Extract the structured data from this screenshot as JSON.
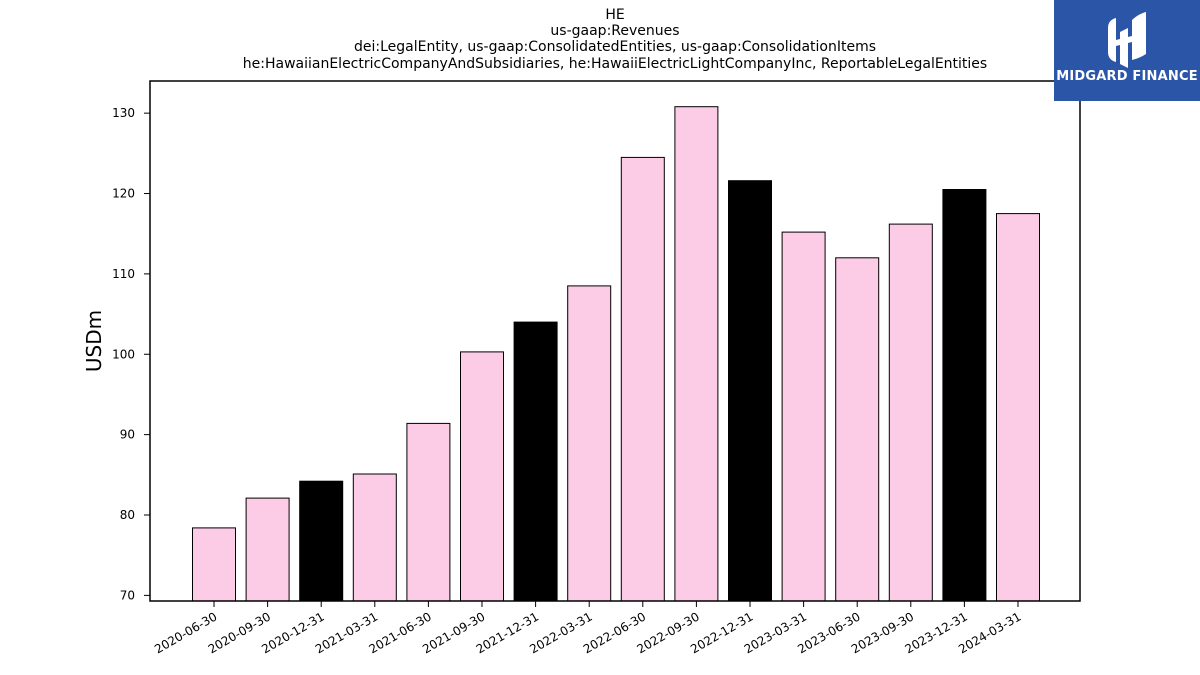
{
  "header": {
    "title_lines": [
      "HE",
      "us-gaap:Revenues",
      "dei:LegalEntity, us-gaap:ConsolidatedEntities, us-gaap:ConsolidationItems",
      "he:HawaiianElectricCompanyAndSubsidiaries, he:HawaiiElectricLightCompanyInc, ReportableLegalEntities"
    ]
  },
  "logo": {
    "text": "MIDGARD FINANCE",
    "color": "#2b56a8"
  },
  "chart_data": {
    "type": "bar",
    "title": "HE",
    "ylabel": "USDm",
    "xlabel": "",
    "ylim": [
      69.3,
      134
    ],
    "yticks": [
      70,
      80,
      90,
      100,
      110,
      120,
      130
    ],
    "grid": false,
    "categories": [
      "2020-06-30",
      "2020-09-30",
      "2020-12-31",
      "2021-03-31",
      "2021-06-30",
      "2021-09-30",
      "2021-12-31",
      "2022-03-31",
      "2022-06-30",
      "2022-09-30",
      "2022-12-31",
      "2023-03-31",
      "2023-06-30",
      "2023-09-30",
      "2023-12-31",
      "2024-03-31"
    ],
    "values": [
      78.4,
      82.1,
      84.2,
      85.1,
      91.4,
      100.3,
      104.0,
      108.5,
      124.5,
      130.8,
      121.6,
      115.2,
      112.0,
      116.2,
      120.5,
      117.5
    ],
    "highlight": [
      false,
      false,
      true,
      false,
      false,
      false,
      true,
      false,
      false,
      false,
      true,
      false,
      false,
      false,
      true,
      false
    ],
    "colors": {
      "default": "#fccbe6",
      "highlight": "#000000",
      "edge": "#000000"
    }
  }
}
